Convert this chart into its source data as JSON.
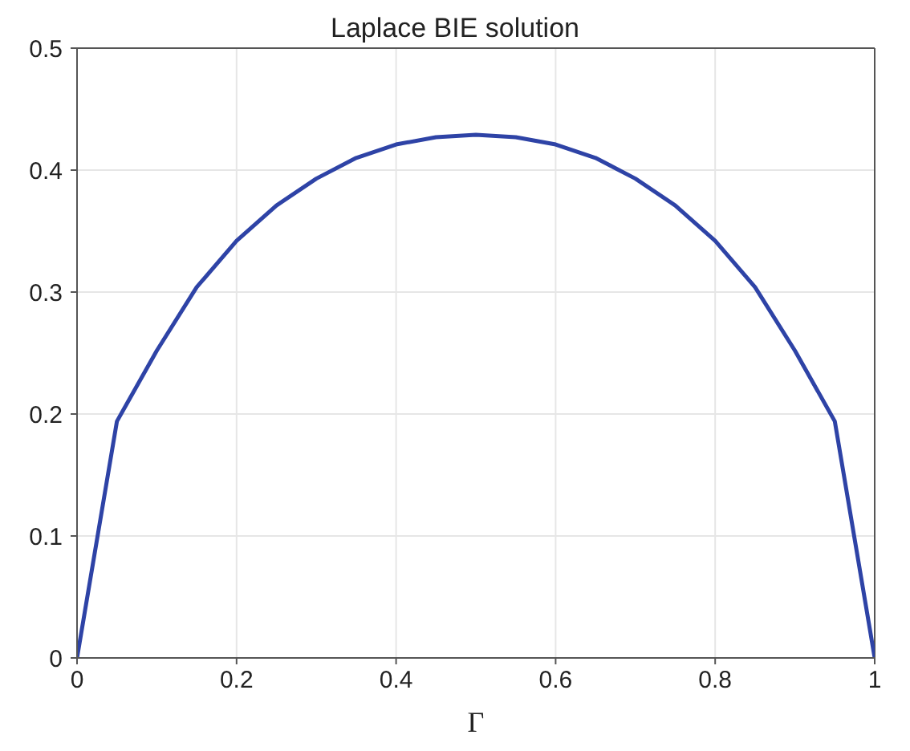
{
  "chart_data": {
    "type": "line",
    "title": "Laplace BIE solution",
    "xlabel": "Γ",
    "x": [
      0,
      0.05,
      0.1,
      0.15,
      0.2,
      0.25,
      0.3,
      0.35,
      0.4,
      0.45,
      0.5,
      0.55,
      0.6,
      0.65,
      0.7,
      0.75,
      0.8,
      0.85,
      0.9,
      0.95,
      1
    ],
    "series": [
      {
        "color": "#2e43a6",
        "values": [
          0,
          0.194,
          0.252,
          0.304,
          0.342,
          0.371,
          0.393,
          0.41,
          0.421,
          0.427,
          0.429,
          0.427,
          0.421,
          0.41,
          0.393,
          0.371,
          0.342,
          0.304,
          0.252,
          0.194,
          0
        ]
      }
    ],
    "xlim": [
      0,
      1
    ],
    "xticks": [
      0,
      0.2,
      0.4,
      0.6,
      0.8,
      1
    ],
    "ylim": [
      0,
      0.5
    ],
    "yticks": [
      0,
      0.1,
      0.2,
      0.3,
      0.4,
      0.5
    ],
    "grid": true,
    "marker": "none",
    "line_style": "solid"
  }
}
